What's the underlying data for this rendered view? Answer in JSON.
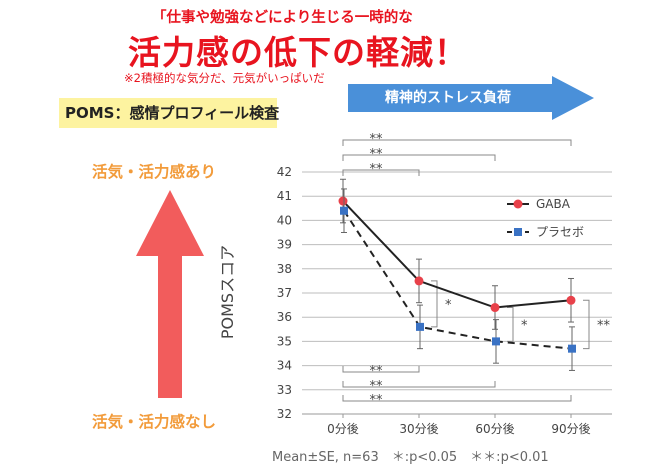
{
  "header": {
    "subtitle": "「仕事や勉強などにより生じる一時的な",
    "headline": "活力感の低下の軽減！",
    "note": "※2積極的な気分だ、元気がいっぱいだ"
  },
  "poms_label": "POMS：感情プロフィール検査",
  "stress_label": "精神的ストレス負荷",
  "vigor_high": "活気・活力感あり",
  "vigor_low": "活気・活力感なし",
  "footnote": "Mean±SE, n=63　＊:p<0.05　＊＊:p<0.01",
  "colors": {
    "gaba": "#e8414a",
    "placebo": "#3a72c4",
    "headline": "#e8141f",
    "arrow_up": "#f25c5c",
    "arrow_right": "#4a90d9"
  },
  "chart_data": {
    "type": "line",
    "categories": [
      "0分後",
      "30分後",
      "60分後",
      "90分後"
    ],
    "ylabel": "POMSスコア",
    "ylim": [
      32,
      42
    ],
    "yticks": [
      32,
      33,
      34,
      35,
      36,
      37,
      38,
      39,
      40,
      41,
      42
    ],
    "grid": true,
    "legend_position": "top-right",
    "series": [
      {
        "name": "GABA",
        "values": [
          40.8,
          37.5,
          36.4,
          36.7
        ],
        "err": [
          0.9,
          0.9,
          0.9,
          0.9
        ],
        "style": "solid",
        "marker": "circle"
      },
      {
        "name": "プラセボ",
        "values": [
          40.4,
          35.6,
          35.0,
          34.7
        ],
        "err": [
          0.9,
          0.9,
          0.9,
          0.9
        ],
        "style": "dashed",
        "marker": "square"
      }
    ],
    "significance": [
      {
        "label": "**",
        "type": "top",
        "from": 0,
        "to": 3
      },
      {
        "label": "**",
        "type": "top",
        "from": 0,
        "to": 2
      },
      {
        "label": "**",
        "type": "top",
        "from": 0,
        "to": 1
      },
      {
        "label": "*",
        "type": "pair",
        "at": 1
      },
      {
        "label": "*",
        "type": "pair",
        "at": 2
      },
      {
        "label": "**",
        "type": "pair",
        "at": 3
      },
      {
        "label": "**",
        "type": "bottom",
        "from": 0,
        "to": 1
      },
      {
        "label": "**",
        "type": "bottom",
        "from": 0,
        "to": 2
      },
      {
        "label": "**",
        "type": "bottom",
        "from": 0,
        "to": 3
      }
    ]
  }
}
